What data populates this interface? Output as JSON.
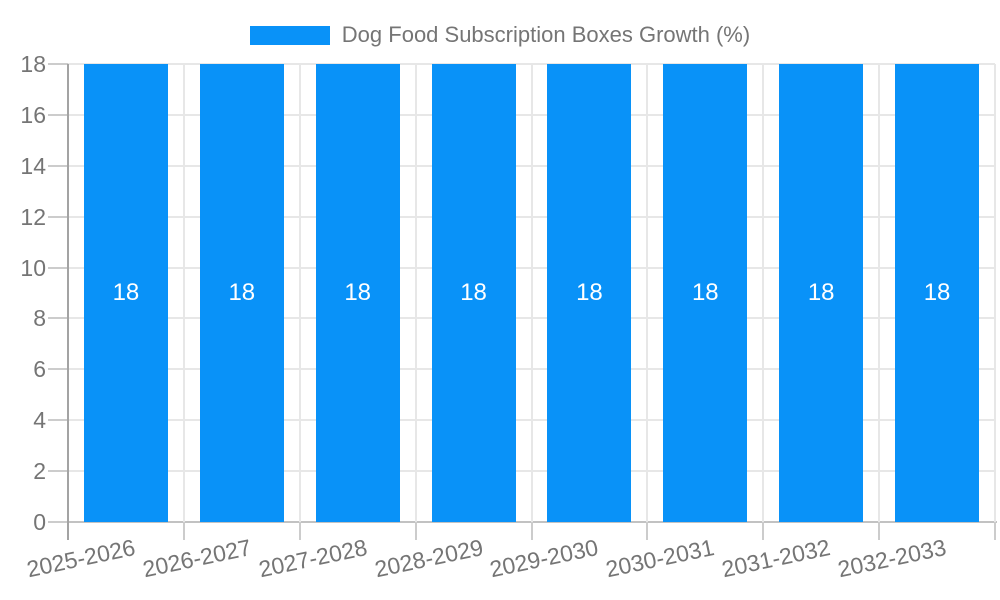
{
  "legend": {
    "series_label": "Dog Food Subscription Boxes Growth (%)"
  },
  "chart_data": {
    "type": "bar",
    "title": "Dog Food Subscription Boxes Growth (%)",
    "categories": [
      "2025-2026",
      "2026-2027",
      "2027-2028",
      "2028-2029",
      "2029-2030",
      "2030-2031",
      "2031-2032",
      "2032-2033"
    ],
    "series": [
      {
        "name": "Dog Food Subscription Boxes Growth (%)",
        "values": [
          18,
          18,
          18,
          18,
          18,
          18,
          18,
          18
        ],
        "color": "#0992F8"
      }
    ],
    "yticks": [
      "0",
      "2",
      "4",
      "6",
      "8",
      "10",
      "12",
      "14",
      "16",
      "18"
    ],
    "ylim": [
      0,
      18
    ],
    "ytick_step": 2,
    "xlabel": "",
    "ylabel": "",
    "grid": true,
    "legend_position": "top",
    "value_label_position": "center",
    "value_label_color": "#FFFFFF"
  },
  "colors": {
    "bar": "#0992F8",
    "gridline": "#E7E7E7",
    "axis_spine": "#A3A3A3",
    "axis_bottom": "#C2C2C2",
    "tick": "#CCCCCC",
    "text": "#757575",
    "background": "#FFFFFF"
  }
}
